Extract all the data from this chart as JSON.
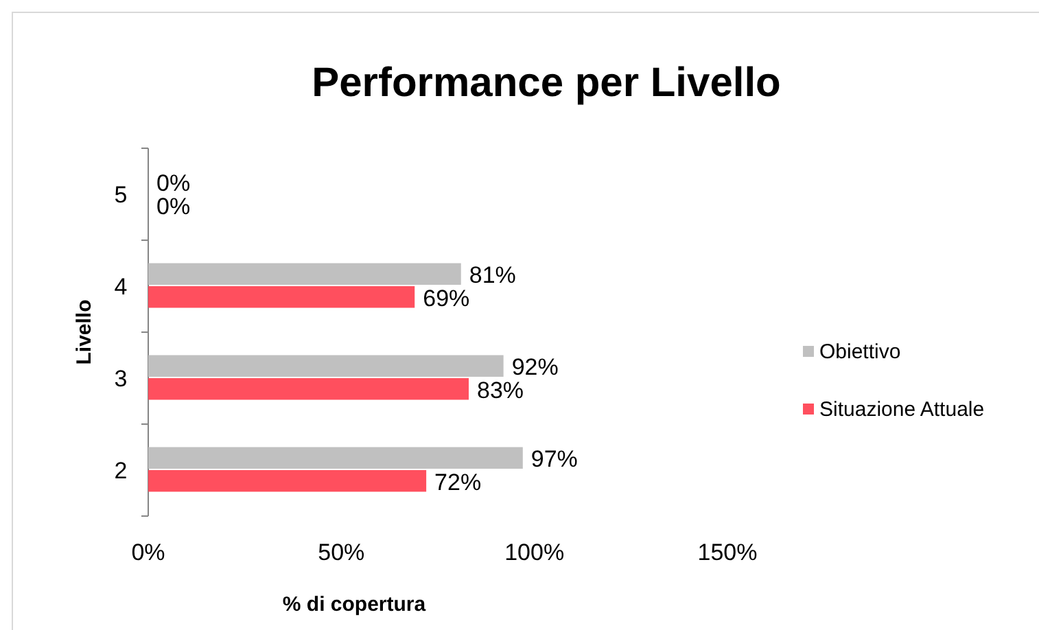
{
  "chart_data": {
    "type": "bar",
    "orientation": "horizontal",
    "title": "Performance per Livello",
    "xlabel": "% di copertura",
    "ylabel": "Livello",
    "categories": [
      "5",
      "4",
      "3",
      "2"
    ],
    "series": [
      {
        "name": "Obiettivo",
        "color": "#c0c0c0",
        "values": [
          0,
          81,
          92,
          97
        ],
        "value_labels": [
          "0%",
          "81%",
          "92%",
          "97%"
        ]
      },
      {
        "name": "Situazione Attuale",
        "color": "#ff4f5e",
        "values": [
          0,
          69,
          83,
          72
        ],
        "value_labels": [
          "0%",
          "69%",
          "83%",
          "72%"
        ]
      }
    ],
    "xlim": [
      0,
      150
    ],
    "xticks": [
      {
        "value": 0,
        "label": "0%"
      },
      {
        "value": 50,
        "label": "50%"
      },
      {
        "value": 100,
        "label": "100%"
      },
      {
        "value": 150,
        "label": "150%"
      }
    ],
    "grid": false,
    "legend": "right"
  }
}
